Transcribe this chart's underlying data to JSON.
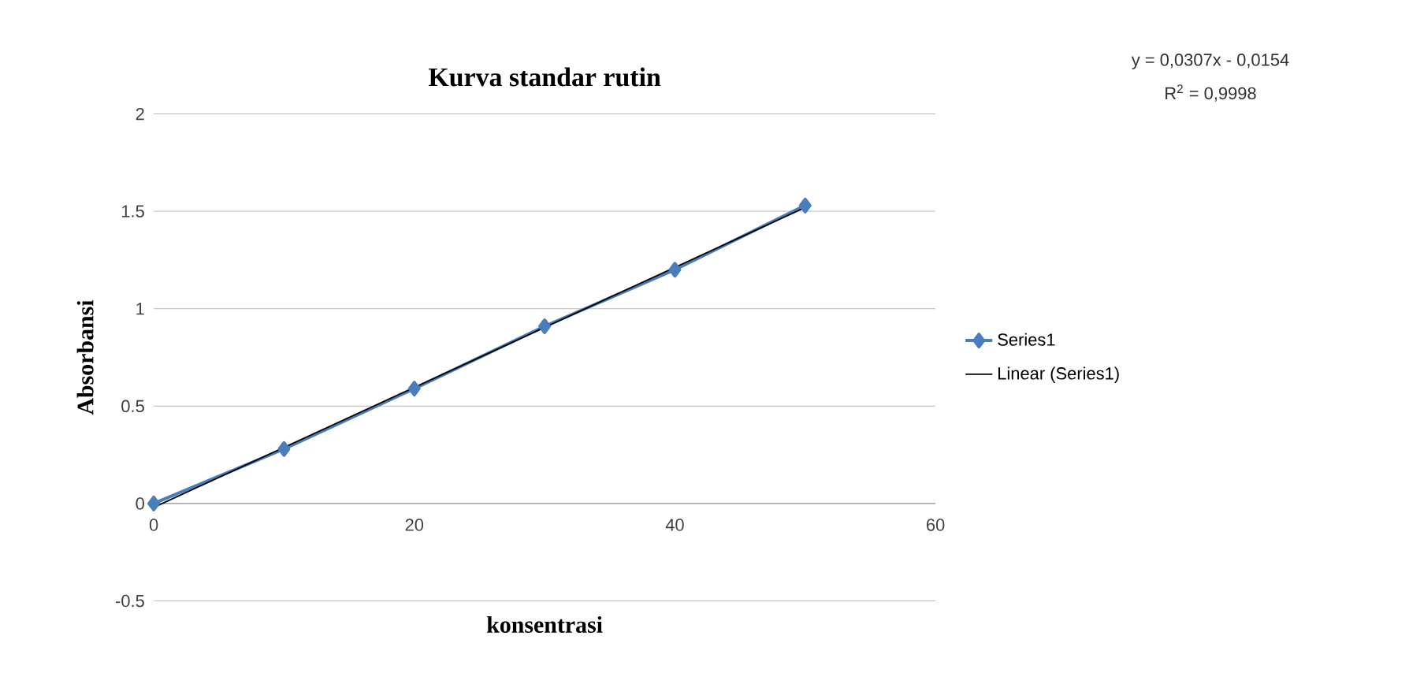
{
  "chart_data": {
    "type": "line",
    "title": "Kurva standar rutin",
    "xlabel": "konsentrasi",
    "ylabel": "Absorbansi",
    "x": [
      0,
      10,
      20,
      30,
      40,
      50
    ],
    "series": [
      {
        "name": "Series1",
        "color": "#4a7ebb",
        "marker": "diamond",
        "values": [
          0,
          0.28,
          0.59,
          0.91,
          1.2,
          1.53
        ]
      },
      {
        "name": "Linear (Series1)",
        "color": "#000000",
        "type": "line",
        "marker": "none",
        "x": [
          0,
          50
        ],
        "values": [
          -0.02,
          1.52
        ]
      }
    ],
    "xlim": [
      0,
      60
    ],
    "xticks": [
      0,
      20,
      40,
      60
    ],
    "ylim": [
      -0.5,
      2
    ],
    "yticks": [
      -0.5,
      0,
      0.5,
      1,
      1.5,
      2
    ],
    "grid": "y",
    "legend": "right",
    "annotations": [
      "y = 0,0307x - 0,0154",
      "R$^{2}$ = 0,9998"
    ]
  }
}
